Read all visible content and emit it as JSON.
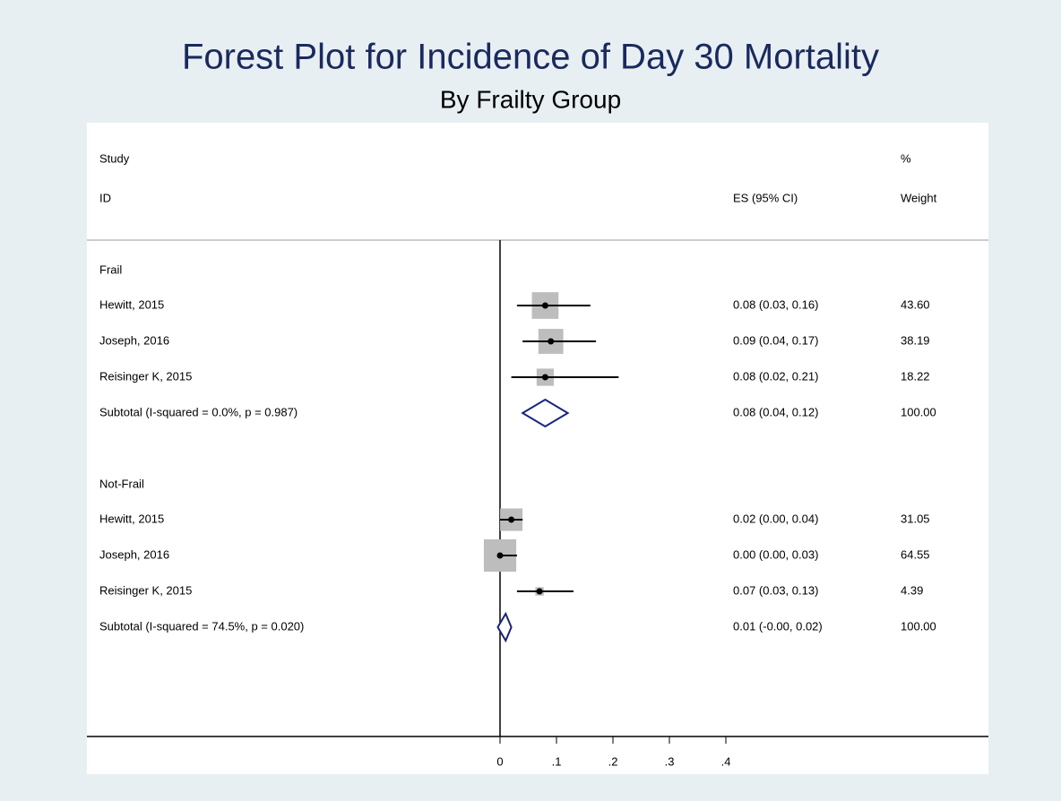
{
  "chart_data": {
    "type": "forest",
    "title": "Forest Plot for Incidence of Day 30 Mortality",
    "subtitle": "By Frailty Group",
    "headers": {
      "study": "Study",
      "id": "ID",
      "ci": "ES (95% CI)",
      "pct": "%",
      "weight": "Weight"
    },
    "xlim": [
      0,
      0.4
    ],
    "xticks": [
      0,
      {
        "value": 0.1,
        "label": ".1"
      },
      {
        "value": 0.2,
        "label": ".2"
      },
      {
        "value": 0.3,
        "label": ".3"
      },
      {
        "value": 0.4,
        "label": ".4"
      }
    ],
    "box_color": "#bdbdbd",
    "diamond_color": "#1a237e",
    "groups": [
      {
        "name": "Frail",
        "studies": [
          {
            "name": "Hewitt, 2015",
            "es": 0.08,
            "lo": 0.03,
            "hi": 0.16,
            "ci_label": "0.08 (0.03, 0.16)",
            "weight": 43.6,
            "weight_label": "43.60"
          },
          {
            "name": "Joseph, 2016",
            "es": 0.09,
            "lo": 0.04,
            "hi": 0.17,
            "ci_label": "0.09 (0.04, 0.17)",
            "weight": 38.19,
            "weight_label": "38.19"
          },
          {
            "name": "Reisinger K, 2015",
            "es": 0.08,
            "lo": 0.02,
            "hi": 0.21,
            "ci_label": "0.08 (0.02, 0.21)",
            "weight": 18.22,
            "weight_label": "18.22"
          }
        ],
        "subtotal": {
          "name": "Subtotal  (I-squared = 0.0%, p = 0.987)",
          "es": 0.08,
          "lo": 0.04,
          "hi": 0.12,
          "ci_label": "0.08 (0.04, 0.12)",
          "weight": 100,
          "weight_label": "100.00"
        }
      },
      {
        "name": "Not-Frail",
        "studies": [
          {
            "name": "Hewitt, 2015",
            "es": 0.02,
            "lo": 0.0,
            "hi": 0.04,
            "ci_label": "0.02 (0.00, 0.04)",
            "weight": 31.05,
            "weight_label": "31.05"
          },
          {
            "name": "Joseph, 2016",
            "es": 0.0,
            "lo": 0.0,
            "hi": 0.03,
            "ci_label": "0.00 (0.00, 0.03)",
            "weight": 64.55,
            "weight_label": "64.55"
          },
          {
            "name": "Reisinger K, 2015",
            "es": 0.07,
            "lo": 0.03,
            "hi": 0.13,
            "ci_label": "0.07 (0.03, 0.13)",
            "weight": 4.39,
            "weight_label": "4.39"
          }
        ],
        "subtotal": {
          "name": "Subtotal  (I-squared = 74.5%, p = 0.020)",
          "es": 0.01,
          "lo": -0.004,
          "hi": 0.02,
          "ci_label": "0.01 (-0.00, 0.02)",
          "weight": 100,
          "weight_label": "100.00"
        }
      }
    ]
  }
}
